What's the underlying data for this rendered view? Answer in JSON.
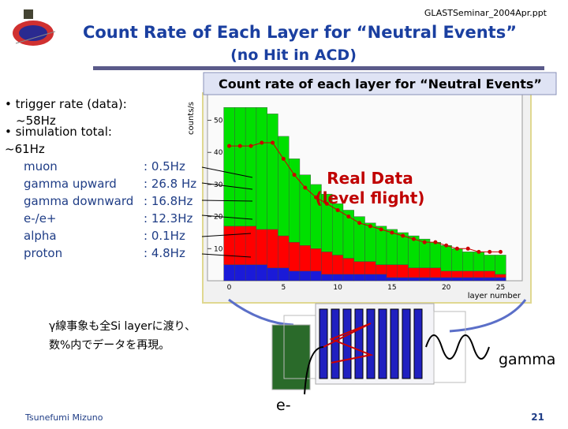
{
  "header": {
    "file": "GLASTSeminar_2004Apr.ppt",
    "title": [
      "Count Rate of Each Layer for “Neutral Events”",
      "(no Hit in ACD)"
    ]
  },
  "bullets": [
    "• trigger rate (data):",
    "~58Hz",
    "• simulation total:",
    "~61Hz"
  ],
  "components": [
    {
      "name": "muon",
      "value": ": 0.5Hz"
    },
    {
      "name": "gamma upward",
      "value": ": 26.8 Hz"
    },
    {
      "name": "gamma downward",
      "value": ": 16.8Hz"
    },
    {
      "name": "e-/e+",
      "value": ": 12.3Hz"
    },
    {
      "name": "alpha",
      "value": ": 0.1Hz"
    },
    {
      "name": "proton",
      "value": ": 4.8Hz"
    }
  ],
  "callout": "Count rate of each layer for “Neutral Events”",
  "real_data": [
    "Real Data",
    "(level flight)"
  ],
  "note": [
    "γ線事象も全Si layerに渡り、",
    "数%内でデータを再現。"
  ],
  "labels": {
    "gamma": "gamma",
    "electron": "e-"
  },
  "footer": {
    "author": "Tsunefumi Mizuno",
    "page": "21"
  },
  "chart_data": {
    "type": "bar",
    "stacked": true,
    "y_label": "counts/s",
    "x_label": "layer number",
    "x": [
      0,
      1,
      2,
      3,
      4,
      5,
      6,
      7,
      8,
      9,
      10,
      11,
      12,
      13,
      14,
      15,
      16,
      17,
      18,
      19,
      20,
      21,
      22,
      23,
      24,
      25
    ],
    "series": [
      {
        "color": "#1a1ad8",
        "values": [
          5,
          5,
          5,
          5,
          4,
          4,
          3,
          3,
          3,
          2,
          2,
          2,
          2,
          2,
          2,
          1,
          1,
          1,
          1,
          1,
          1,
          1,
          1,
          1,
          1,
          1
        ]
      },
      {
        "color": "#ff0000",
        "values": [
          12,
          12,
          12,
          11,
          12,
          10,
          9,
          8,
          7,
          7,
          6,
          5,
          4,
          4,
          3,
          4,
          4,
          3,
          3,
          3,
          2,
          2,
          2,
          2,
          2,
          1
        ]
      },
      {
        "color": "#00e000",
        "values": [
          37,
          37,
          37,
          38,
          36,
          31,
          26,
          22,
          20,
          18,
          16,
          15,
          14,
          12,
          12,
          11,
          10,
          10,
          9,
          8,
          8,
          7,
          6,
          6,
          5,
          6
        ]
      }
    ],
    "points": {
      "color": "#cc0000",
      "values": [
        42,
        42,
        42,
        43,
        43,
        38,
        33,
        29,
        26,
        24,
        22,
        20,
        18,
        17,
        16,
        15,
        14,
        13,
        12,
        12,
        11,
        10,
        10,
        9,
        9,
        9
      ]
    },
    "xlim": [
      -2,
      27
    ],
    "xticks": [
      0,
      5,
      10,
      15,
      20,
      25
    ],
    "ylim": [
      0,
      58
    ],
    "yticks": [
      10,
      20,
      30,
      40,
      50
    ]
  }
}
